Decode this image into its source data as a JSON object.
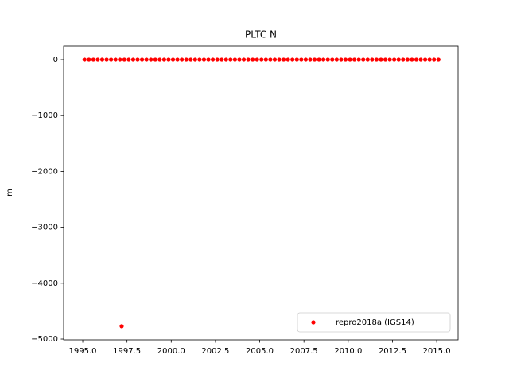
{
  "chart_data": {
    "type": "scatter",
    "title": "PLTC N",
    "y_label": "m",
    "xlim": [
      1993.92,
      2016.21
    ],
    "ylim": [
      -5014,
      242
    ],
    "xticks": [
      {
        "value": 1995.0,
        "label": "1995.0"
      },
      {
        "value": 1997.5,
        "label": "1997.5"
      },
      {
        "value": 2000.0,
        "label": "2000.0"
      },
      {
        "value": 2002.5,
        "label": "2002.5"
      },
      {
        "value": 2005.0,
        "label": "2005.0"
      },
      {
        "value": 2007.5,
        "label": "2007.5"
      },
      {
        "value": 2010.0,
        "label": "2010.0"
      },
      {
        "value": 2012.5,
        "label": "2012.5"
      },
      {
        "value": 2015.0,
        "label": "2015.0"
      }
    ],
    "yticks": [
      {
        "value": -5000,
        "label": "−5000"
      },
      {
        "value": -4000,
        "label": "−4000"
      },
      {
        "value": -3000,
        "label": "−3000"
      },
      {
        "value": -2000,
        "label": "−2000"
      },
      {
        "value": -1000,
        "label": "−1000"
      },
      0
    ],
    "legend": "lower right",
    "series": [
      {
        "name": "repro2018a (IGS14)",
        "color": "#ff0000",
        "x": [
          1995.1,
          1995.35,
          1995.6,
          1995.85,
          1996.1,
          1996.35,
          1996.6,
          1996.85,
          1997.1,
          1997.2,
          1997.35,
          1997.6,
          1997.85,
          1998.1,
          1998.35,
          1998.6,
          1998.85,
          1999.1,
          1999.35,
          1999.6,
          1999.85,
          2000.1,
          2000.35,
          2000.6,
          2000.85,
          2001.1,
          2001.35,
          2001.6,
          2001.85,
          2002.1,
          2002.35,
          2002.6,
          2002.85,
          2003.1,
          2003.35,
          2003.6,
          2003.85,
          2004.1,
          2004.35,
          2004.6,
          2004.85,
          2005.1,
          2005.35,
          2005.6,
          2005.85,
          2006.1,
          2006.35,
          2006.6,
          2006.85,
          2007.1,
          2007.35,
          2007.6,
          2007.85,
          2008.1,
          2008.35,
          2008.6,
          2008.85,
          2009.1,
          2009.35,
          2009.6,
          2009.85,
          2010.1,
          2010.35,
          2010.6,
          2010.85,
          2011.1,
          2011.35,
          2011.6,
          2011.85,
          2012.1,
          2012.35,
          2012.6,
          2012.85,
          2013.1,
          2013.35,
          2013.6,
          2013.85,
          2014.1,
          2014.35,
          2014.6,
          2014.85,
          2015.1
        ],
        "values": [
          0,
          0,
          0,
          0,
          0,
          0,
          0,
          0,
          0,
          -4770,
          0,
          0,
          0,
          0,
          0,
          0,
          0,
          0,
          0,
          0,
          0,
          0,
          0,
          0,
          0,
          0,
          0,
          0,
          0,
          0,
          0,
          0,
          0,
          0,
          0,
          0,
          0,
          0,
          0,
          0,
          0,
          0,
          0,
          0,
          0,
          0,
          0,
          0,
          0,
          0,
          0,
          0,
          0,
          0,
          0,
          0,
          0,
          0,
          0,
          0,
          0,
          0,
          0,
          0,
          0,
          0,
          0,
          0,
          0,
          0,
          0,
          0,
          0,
          0,
          0,
          0,
          0,
          0,
          0,
          0,
          0,
          0
        ]
      }
    ]
  }
}
